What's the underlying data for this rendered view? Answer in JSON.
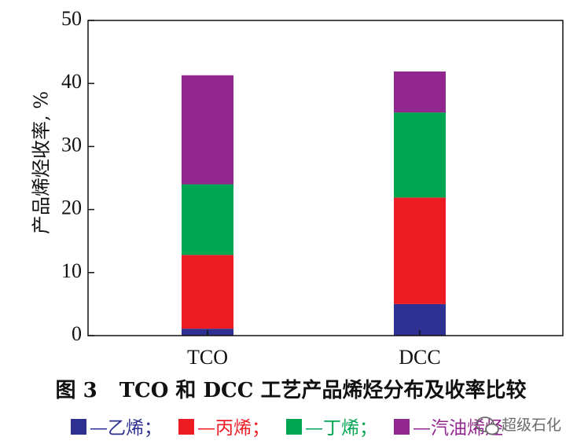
{
  "chart_data": {
    "type": "bar",
    "stacked": true,
    "categories": [
      "TCO",
      "DCC"
    ],
    "series": [
      {
        "name": "乙烯",
        "values": [
          1.1,
          5.0
        ],
        "color": "#2e3192"
      },
      {
        "name": "丙烯",
        "values": [
          11.7,
          16.9
        ],
        "color": "#ed1c24"
      },
      {
        "name": "丁烯",
        "values": [
          11.2,
          13.5
        ],
        "color": "#00a651"
      },
      {
        "name": "汽油烯烃",
        "values": [
          17.3,
          6.5
        ],
        "color": "#92278f"
      }
    ],
    "title": "",
    "xlabel": "",
    "ylabel": "产品烯烃收率, %",
    "ylim": [
      0,
      50
    ],
    "yticks": [
      0,
      10,
      20,
      30,
      40,
      50
    ],
    "grid": false,
    "legend_position": "bottom"
  },
  "caption": {
    "figure_label": "图 3",
    "text": "TCO 和 DCC 工艺产品烯烃分布及收率比较"
  },
  "legend": {
    "dash": "—",
    "separator": "；"
  },
  "watermark": {
    "text": "超级石化",
    "icon": "wechat-bubble-icon"
  }
}
